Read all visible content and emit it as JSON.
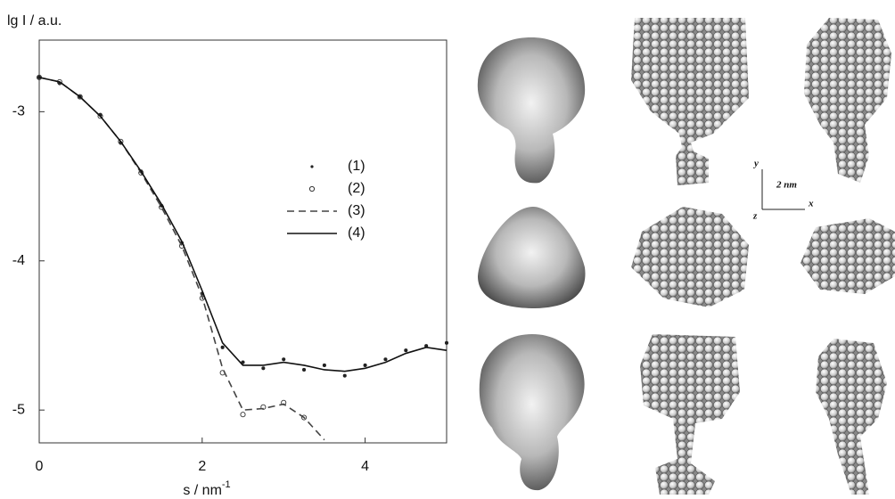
{
  "chart_data": {
    "type": "line",
    "y_label": "lg I / a.u.",
    "x_label": "s / nm",
    "x_label_sup": "-1",
    "x": [
      0,
      0.25,
      0.5,
      0.75,
      1,
      1.25,
      1.5,
      1.75,
      2,
      2.25,
      2.5,
      2.75,
      3,
      3.25,
      3.5,
      3.75,
      4,
      4.25,
      4.5,
      4.75,
      5
    ],
    "series": [
      {
        "name": "(1)",
        "style": "dot",
        "color": "#222",
        "values": [
          -2.77,
          -2.81,
          -2.9,
          -3.02,
          -3.21,
          -3.4,
          -3.63,
          -3.88,
          -4.22,
          -4.58,
          -4.68,
          -4.72,
          -4.66,
          -4.73,
          -4.7,
          -4.77,
          -4.7,
          -4.66,
          -4.6,
          -4.57,
          -4.55
        ]
      },
      {
        "name": "(2)",
        "style": "circle",
        "color": "#333",
        "values": [
          -2.77,
          -2.8,
          -2.9,
          -3.03,
          -3.2,
          -3.41,
          -3.64,
          -3.9,
          -4.25,
          -4.75,
          -5.03,
          -4.98,
          -4.95,
          -5.05,
          null,
          null,
          null,
          null,
          null,
          null,
          null
        ]
      },
      {
        "name": "(3)",
        "style": "dashed",
        "color": "#444",
        "values": [
          -2.77,
          -2.8,
          -2.9,
          -3.03,
          -3.2,
          -3.41,
          -3.64,
          -3.9,
          -4.24,
          -4.72,
          -5.0,
          -4.99,
          -4.96,
          -5.05,
          -5.2,
          null,
          null,
          null,
          null,
          null,
          null
        ]
      },
      {
        "name": "(4)",
        "style": "solid",
        "color": "#111",
        "values": [
          -2.77,
          -2.8,
          -2.9,
          -3.03,
          -3.2,
          -3.4,
          -3.62,
          -3.87,
          -4.2,
          -4.55,
          -4.7,
          -4.7,
          -4.68,
          -4.7,
          -4.73,
          -4.74,
          -4.72,
          -4.68,
          -4.62,
          -4.58,
          -4.6
        ]
      }
    ],
    "xlim": [
      0,
      5
    ],
    "ylim": [
      -5.22,
      -2.52
    ],
    "xticks": [
      0,
      2,
      4
    ],
    "yticks": [
      -5,
      -4,
      -3
    ],
    "annotations": [
      "y",
      "2 nm",
      "z",
      "x"
    ]
  }
}
